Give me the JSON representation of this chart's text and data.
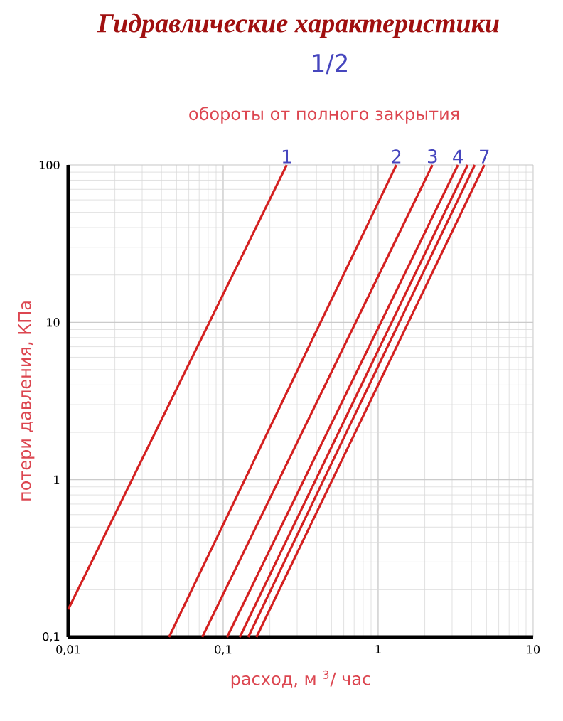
{
  "chart_data": {
    "type": "line",
    "title": "Гидравлические характеристики",
    "subtitle": "1/2",
    "legend_title": "обороты от полного закрытия",
    "xlabel": "расход, м $^{3}$/ час",
    "ylabel": "потери давления, КПа",
    "log": "xy",
    "grid": true,
    "line_style": "solid",
    "xlim": [
      0.01,
      10
    ],
    "ylim": [
      0.1,
      100
    ],
    "xticks": [
      {
        "value": 0.01,
        "label": "0,01"
      },
      {
        "value": 0.1,
        "label": "0,1"
      },
      1,
      10
    ],
    "yticks": [
      {
        "value": 0.1,
        "label": "0,1"
      },
      1,
      10,
      100
    ],
    "series": [
      {
        "name": "1",
        "color": "#d42020",
        "x": [
          0.01,
          0.257
        ],
        "values": [
          0.15,
          100
        ]
      },
      {
        "name": "2",
        "color": "#d42020",
        "x": [
          0.0447,
          1.31
        ],
        "values": [
          0.1,
          100
        ]
      },
      {
        "name": "3",
        "color": "#d42020",
        "x": [
          0.0733,
          2.24
        ],
        "values": [
          0.1,
          100
        ]
      },
      {
        "name": "4",
        "color": "#d42020",
        "x": [
          0.106,
          3.27
        ],
        "values": [
          0.1,
          100
        ]
      },
      {
        "color": "#d42020",
        "x": [
          0.128,
          3.78
        ],
        "values": [
          0.1,
          100
        ]
      },
      {
        "color": "#d42020",
        "x": [
          0.145,
          4.2
        ],
        "values": [
          0.1,
          100
        ]
      },
      {
        "name": "7",
        "color": "#d42020",
        "x": [
          0.164,
          4.84
        ],
        "values": [
          0.1,
          100
        ]
      }
    ]
  }
}
